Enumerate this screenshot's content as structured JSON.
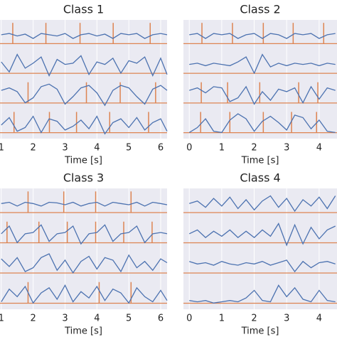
{
  "chart_data": [
    {
      "type": "line",
      "title": "Class 1",
      "xlabel": "Time [s]",
      "xlim": [
        0.96,
        6.2
      ],
      "xticks": [
        1,
        2,
        3,
        4,
        5,
        6
      ],
      "signal_color": "#4c72b0",
      "event_color": "#dd8452",
      "grid": true,
      "x": [
        1,
        1.25,
        1.5,
        1.75,
        2,
        2.25,
        2.5,
        2.75,
        3,
        3.25,
        3.5,
        3.75,
        4,
        4.25,
        4.5,
        4.75,
        5,
        5.25,
        5.5,
        5.75,
        6,
        6.2
      ],
      "tracks": [
        {
          "values": [
            0,
            0.1,
            -0.1,
            0.05,
            -0.3,
            0.1,
            0,
            -0.1,
            0.1,
            -0.3,
            0,
            0.1,
            -0.1,
            0.05,
            -0.3,
            0.1,
            0,
            0.1,
            -0.3,
            0,
            0.1,
            0
          ],
          "events": [
            1.36,
            2.4,
            3.47,
            4.51,
            5.67
          ]
        },
        {
          "values": [
            0.2,
            -0.6,
            0.8,
            -0.3,
            0.1,
            0.6,
            -0.9,
            0.4,
            0,
            0.1,
            0.7,
            -0.8,
            0.2,
            0,
            0.5,
            -0.7,
            0.3,
            0.1,
            0.6,
            -0.9,
            0.5,
            -0.8
          ]
        },
        {
          "values": [
            0.3,
            0.5,
            0.2,
            -0.7,
            -0.3,
            0.6,
            0.8,
            0.4,
            -0.8,
            -0.2,
            0.5,
            0.7,
            0.1,
            -0.9,
            0.3,
            0.7,
            0.5,
            -0.2,
            -0.8,
            0.4,
            0.7,
            0.3
          ],
          "events": [
            1.84,
            3.67,
            4.73,
            5.84
          ]
        },
        {
          "values": [
            -0.1,
            0.5,
            -0.6,
            -0.3,
            0.6,
            -0.7,
            0.4,
            0.2,
            -0.5,
            -0.2,
            0.3,
            -0.4,
            0.6,
            -0.8,
            0.1,
            0.4,
            -0.3,
            0.5,
            -0.5,
            0.1,
            0.4,
            -0.6
          ],
          "events": [
            1.4,
            2.51,
            3.36,
            4.4,
            5.62
          ]
        }
      ]
    },
    {
      "type": "line",
      "title": "Class 2",
      "xlabel": "Time [s]",
      "xlim": [
        -0.18,
        4.55
      ],
      "xticks": [
        0,
        1,
        2,
        3,
        4
      ],
      "signal_color": "#4c72b0",
      "event_color": "#dd8452",
      "grid": true,
      "x": [
        0,
        0.25,
        0.5,
        0.75,
        1,
        1.25,
        1.5,
        1.75,
        2,
        2.25,
        2.5,
        2.75,
        3,
        3.25,
        3.5,
        3.75,
        4,
        4.25,
        4.5
      ],
      "tracks": [
        {
          "values": [
            0,
            0.1,
            -0.3,
            0.1,
            0,
            0.1,
            -0.3,
            0,
            0.1,
            -0.3,
            0.1,
            0,
            -0.3,
            0.1,
            0,
            0.1,
            -0.3,
            0,
            0.1
          ],
          "events": [
            0.39,
            1.33,
            2.28,
            3.2,
            4.14
          ]
        },
        {
          "values": [
            0,
            0.1,
            -0.1,
            0.1,
            0,
            -0.1,
            0.2,
            0.6,
            -0.7,
            0.8,
            -0.2,
            0.1,
            -0.1,
            0.1,
            0,
            0.1,
            -0.1,
            0.1,
            0
          ]
        },
        {
          "values": [
            0.3,
            0.5,
            0.1,
            0.6,
            0.5,
            -0.6,
            -0.3,
            0.6,
            -0.8,
            0.2,
            -0.5,
            0.4,
            0.2,
            0.5,
            -0.7,
            0.6,
            -0.4,
            0.5,
            0.3
          ],
          "events": [
            0.37,
            1.18,
            2.17,
            3.37,
            3.96
          ]
        },
        {
          "values": [
            -0.7,
            -0.3,
            0.4,
            -0.6,
            -0.7,
            0.3,
            0.8,
            0.4,
            -0.6,
            0.2,
            0.6,
            0.1,
            -0.5,
            0.7,
            0.5,
            -0.4,
            0.3,
            -0.6,
            -0.7
          ],
          "events": [
            0.35,
            1.25,
            2.28,
            3.15,
            3.92
          ]
        }
      ]
    },
    {
      "type": "line",
      "title": "Class 3",
      "xlabel": "Time [s]",
      "xlim": [
        0.96,
        6.2
      ],
      "xticks": [
        1,
        2,
        3,
        4,
        5,
        6
      ],
      "signal_color": "#4c72b0",
      "event_color": "#dd8452",
      "grid": true,
      "x": [
        1,
        1.25,
        1.5,
        1.75,
        2,
        2.25,
        2.5,
        2.75,
        3,
        3.25,
        3.5,
        3.75,
        4,
        4.25,
        4.5,
        4.75,
        5,
        5.25,
        5.5,
        5.75,
        6,
        6.2
      ],
      "tracks": [
        {
          "values": [
            0,
            0.1,
            -0.2,
            0.1,
            0,
            -0.2,
            0.1,
            0.05,
            -0.1,
            0.1,
            -0.2,
            0,
            0.1,
            -0.2,
            0.1,
            0,
            -0.1,
            0.1,
            -0.2,
            0.1,
            0,
            -0.1
          ],
          "events": [
            1.84,
            2.96,
            3.96,
            5.07
          ]
        },
        {
          "values": [
            0,
            0.6,
            -0.7,
            0,
            0.1,
            0.7,
            -0.6,
            0,
            0.1,
            0.6,
            -0.8,
            0,
            0.1,
            0.7,
            -0.6,
            0,
            0.1,
            0.6,
            -0.7,
            0,
            0.1,
            0
          ],
          "events": [
            1.18,
            2.18,
            3.07,
            3.96,
            4.84,
            5.73
          ]
        },
        {
          "values": [
            0.4,
            -0.2,
            0.5,
            -0.6,
            -0.3,
            0.5,
            0.8,
            -0.5,
            0.3,
            -0.7,
            0.2,
            0.6,
            -0.4,
            0.5,
            0.3,
            -0.6,
            0.7,
            -0.3,
            0.2,
            -0.5,
            0.4,
            0.1
          ]
        },
        {
          "values": [
            -0.6,
            0.4,
            -0.2,
            0.6,
            -0.7,
            0.1,
            0.5,
            -0.4,
            0.7,
            -0.6,
            0.2,
            -0.3,
            0.6,
            -0.5,
            0.4,
            0.1,
            -0.7,
            0.5,
            -0.2,
            -0.6,
            0.3,
            -0.5
          ],
          "events": [
            1.84,
            4.07,
            5.07
          ]
        }
      ]
    },
    {
      "type": "line",
      "title": "Class 4",
      "xlabel": "Time [s]",
      "xlim": [
        -0.18,
        4.55
      ],
      "xticks": [
        0,
        1,
        2,
        3,
        4
      ],
      "signal_color": "#4c72b0",
      "event_color": "#dd8452",
      "grid": true,
      "x": [
        0,
        0.25,
        0.5,
        0.75,
        1,
        1.25,
        1.5,
        1.75,
        2,
        2.25,
        2.5,
        2.75,
        3,
        3.25,
        3.5,
        3.75,
        4,
        4.25,
        4.5
      ],
      "tracks": [
        {
          "values": [
            0,
            0.2,
            -0.3,
            0.4,
            -0.2,
            0.5,
            -0.4,
            0.3,
            -0.5,
            0.2,
            0.6,
            -0.3,
            0.4,
            -0.6,
            0.3,
            -0.2,
            0.5,
            -0.4,
            0.6
          ]
        },
        {
          "values": [
            0,
            0.3,
            -0.3,
            0.2,
            -0.2,
            0.3,
            -0.3,
            0.2,
            -0.3,
            0.3,
            -0.2,
            0.8,
            -0.9,
            0.7,
            -0.8,
            0.5,
            -0.4,
            0.3,
            0.6
          ]
        },
        {
          "values": [
            0.2,
            0,
            0.1,
            -0.1,
            0.2,
            0,
            -0.1,
            0.1,
            0,
            0.2,
            -0.1,
            0.1,
            0.3,
            -0.6,
            0.2,
            -0.3,
            0.1,
            0.2,
            0
          ]
        },
        {
          "values": [
            -0.5,
            -0.6,
            -0.5,
            -0.7,
            -0.6,
            -0.5,
            -0.6,
            -0.3,
            0.3,
            -0.5,
            -0.6,
            0.7,
            -0.2,
            0.5,
            -0.4,
            -0.6,
            0.3,
            -0.5,
            -0.6
          ]
        }
      ]
    }
  ]
}
